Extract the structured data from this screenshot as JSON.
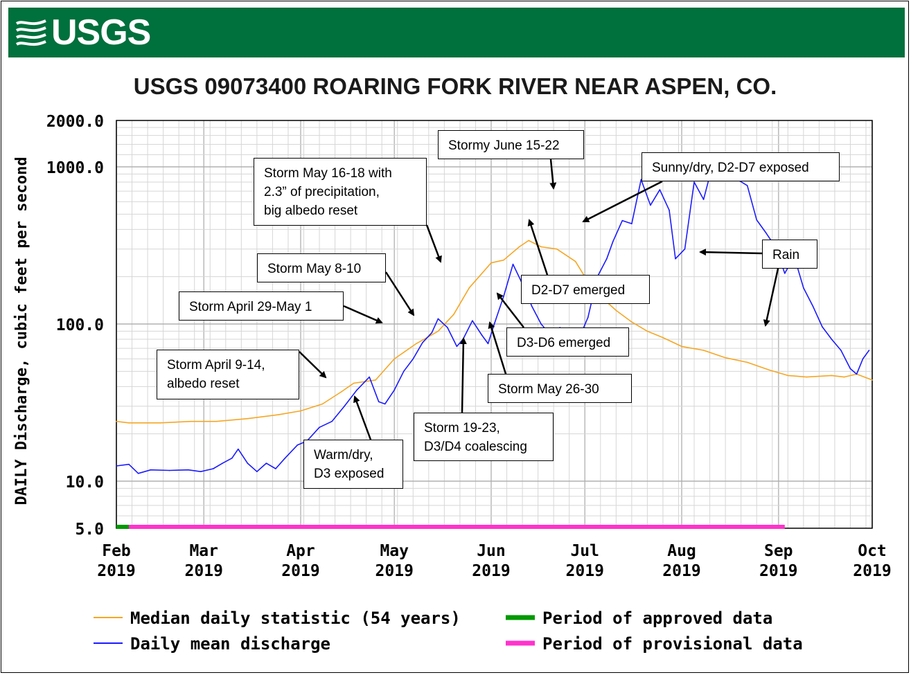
{
  "logo": {
    "text": "USGS"
  },
  "chart_data": {
    "type": "line",
    "title": "USGS 09073400 ROARING FORK RIVER NEAR ASPEN, CO.",
    "ylabel": "DAILY Discharge, cubic feet per second",
    "yscale": "log",
    "ylim": [
      5,
      2000
    ],
    "yticks": [
      "2000.0",
      "1000.0",
      "100.0",
      "10.0",
      "5.0"
    ],
    "xticks": [
      {
        "month": "Feb",
        "year": "2019"
      },
      {
        "month": "Mar",
        "year": "2019"
      },
      {
        "month": "Apr",
        "year": "2019"
      },
      {
        "month": "May",
        "year": "2019"
      },
      {
        "month": "Jun",
        "year": "2019"
      },
      {
        "month": "Jul",
        "year": "2019"
      },
      {
        "month": "Aug",
        "year": "2019"
      },
      {
        "month": "Sep",
        "year": "2019"
      },
      {
        "month": "Oct",
        "year": "2019"
      }
    ],
    "grid": true,
    "series": [
      {
        "name": "Median daily statistic (54 years)",
        "color": "#f5a623",
        "points": [
          [
            "2019-02-01",
            24
          ],
          [
            "2019-02-05",
            23.5
          ],
          [
            "2019-02-15",
            23.5
          ],
          [
            "2019-02-25",
            24
          ],
          [
            "2019-03-05",
            24
          ],
          [
            "2019-03-15",
            25
          ],
          [
            "2019-03-25",
            26.5
          ],
          [
            "2019-04-01",
            28
          ],
          [
            "2019-04-08",
            31
          ],
          [
            "2019-04-14",
            37
          ],
          [
            "2019-04-18",
            42
          ],
          [
            "2019-04-25",
            44
          ],
          [
            "2019-05-01",
            60
          ],
          [
            "2019-05-08",
            75
          ],
          [
            "2019-05-15",
            90
          ],
          [
            "2019-05-20",
            115
          ],
          [
            "2019-05-25",
            170
          ],
          [
            "2019-06-01",
            245
          ],
          [
            "2019-06-05",
            255
          ],
          [
            "2019-06-10",
            310
          ],
          [
            "2019-06-13",
            340
          ],
          [
            "2019-06-17",
            310
          ],
          [
            "2019-06-22",
            300
          ],
          [
            "2019-06-28",
            250
          ],
          [
            "2019-07-01",
            200
          ],
          [
            "2019-07-06",
            150
          ],
          [
            "2019-07-11",
            122
          ],
          [
            "2019-07-16",
            103
          ],
          [
            "2019-07-21",
            90
          ],
          [
            "2019-07-26",
            82
          ],
          [
            "2019-08-01",
            72
          ],
          [
            "2019-08-08",
            68
          ],
          [
            "2019-08-15",
            61
          ],
          [
            "2019-08-22",
            57
          ],
          [
            "2019-08-29",
            51
          ],
          [
            "2019-09-04",
            47
          ],
          [
            "2019-09-10",
            46
          ],
          [
            "2019-09-18",
            47
          ],
          [
            "2019-09-22",
            46
          ],
          [
            "2019-09-26",
            48
          ],
          [
            "2019-10-01",
            44
          ]
        ]
      },
      {
        "name": "Daily mean discharge",
        "color": "#1a1aff",
        "points": [
          [
            "2019-02-01",
            12.5
          ],
          [
            "2019-02-05",
            12.8
          ],
          [
            "2019-02-08",
            11.2
          ],
          [
            "2019-02-12",
            11.8
          ],
          [
            "2019-02-18",
            11.7
          ],
          [
            "2019-02-24",
            11.8
          ],
          [
            "2019-02-28",
            11.5
          ],
          [
            "2019-03-04",
            12
          ],
          [
            "2019-03-07",
            13
          ],
          [
            "2019-03-10",
            14
          ],
          [
            "2019-03-12",
            16
          ],
          [
            "2019-03-15",
            13
          ],
          [
            "2019-03-18",
            11.5
          ],
          [
            "2019-03-21",
            13
          ],
          [
            "2019-03-24",
            12
          ],
          [
            "2019-03-27",
            14
          ],
          [
            "2019-03-31",
            17
          ],
          [
            "2019-04-03",
            18
          ],
          [
            "2019-04-07",
            22
          ],
          [
            "2019-04-11",
            24
          ],
          [
            "2019-04-15",
            30
          ],
          [
            "2019-04-19",
            38
          ],
          [
            "2019-04-23",
            46
          ],
          [
            "2019-04-26",
            32
          ],
          [
            "2019-04-28",
            31
          ],
          [
            "2019-05-01",
            38
          ],
          [
            "2019-05-04",
            50
          ],
          [
            "2019-05-07",
            60
          ],
          [
            "2019-05-10",
            76
          ],
          [
            "2019-05-13",
            88
          ],
          [
            "2019-05-15",
            108
          ],
          [
            "2019-05-18",
            95
          ],
          [
            "2019-05-21",
            72
          ],
          [
            "2019-05-23",
            80
          ],
          [
            "2019-05-26",
            105
          ],
          [
            "2019-05-29",
            85
          ],
          [
            "2019-05-31",
            75
          ],
          [
            "2019-06-02",
            100
          ],
          [
            "2019-06-05",
            150
          ],
          [
            "2019-06-08",
            240
          ],
          [
            "2019-06-11",
            180
          ],
          [
            "2019-06-14",
            130
          ],
          [
            "2019-06-17",
            100
          ],
          [
            "2019-06-20",
            85
          ],
          [
            "2019-06-23",
            95
          ],
          [
            "2019-06-26",
            85
          ],
          [
            "2019-06-29",
            80
          ],
          [
            "2019-07-02",
            110
          ],
          [
            "2019-07-05",
            200
          ],
          [
            "2019-07-08",
            260
          ],
          [
            "2019-07-10",
            335
          ],
          [
            "2019-07-13",
            455
          ],
          [
            "2019-07-16",
            435
          ],
          [
            "2019-07-19",
            830
          ],
          [
            "2019-07-22",
            570
          ],
          [
            "2019-07-25",
            715
          ],
          [
            "2019-07-28",
            530
          ],
          [
            "2019-07-30",
            260
          ],
          [
            "2019-08-02",
            300
          ],
          [
            "2019-08-05",
            800
          ],
          [
            "2019-08-08",
            620
          ],
          [
            "2019-08-11",
            1050
          ],
          [
            "2019-08-14",
            860
          ],
          [
            "2019-08-18",
            850
          ],
          [
            "2019-08-22",
            760
          ],
          [
            "2019-08-25",
            460
          ],
          [
            "2019-08-28",
            380
          ],
          [
            "2019-08-31",
            310
          ],
          [
            "2019-09-03",
            210
          ],
          [
            "2019-09-06",
            270
          ],
          [
            "2019-09-09",
            170
          ],
          [
            "2019-09-12",
            130
          ],
          [
            "2019-09-15",
            96
          ],
          [
            "2019-09-18",
            80
          ],
          [
            "2019-09-21",
            68
          ],
          [
            "2019-09-24",
            52
          ],
          [
            "2019-09-26",
            48
          ],
          [
            "2019-09-28",
            60
          ],
          [
            "2019-09-30",
            68
          ]
        ]
      }
    ],
    "approved_period": {
      "name": "Period of approved data",
      "color": "#009900",
      "start": "2019-02-01",
      "end": "2019-02-05"
    },
    "provisional_period": {
      "name": "Period of provisional data",
      "color": "#ff33cc",
      "start": "2019-02-05",
      "end": "2019-09-03"
    },
    "annotations": [
      {
        "text": "Storm April 9-14,\nalbedo reset"
      },
      {
        "text": "Warm/dry,\nD3 exposed"
      },
      {
        "text": "Storm April 29-May 1"
      },
      {
        "text": "Storm May 8-10"
      },
      {
        "text": "Storm May 16-18 with\n2.3” of precipitation,\nbig albedo reset"
      },
      {
        "text": "Storm 19-23,\nD3/D4 coalescing"
      },
      {
        "text": "Storm May 26-30"
      },
      {
        "text": "D3-D6 emerged"
      },
      {
        "text": "D2-D7 emerged"
      },
      {
        "text": "Stormy June 15-22"
      },
      {
        "text": "Sunny/dry, D2-D7 exposed"
      },
      {
        "text": "Rain"
      }
    ]
  },
  "legend": {
    "items": [
      {
        "label": "Median daily statistic (54 years)",
        "color": "#f5a623"
      },
      {
        "label": "Daily mean discharge",
        "color": "#1a1aff"
      },
      {
        "label": "Period of approved data",
        "color": "#009900"
      },
      {
        "label": "Period of provisional data",
        "color": "#ff33cc"
      }
    ]
  }
}
